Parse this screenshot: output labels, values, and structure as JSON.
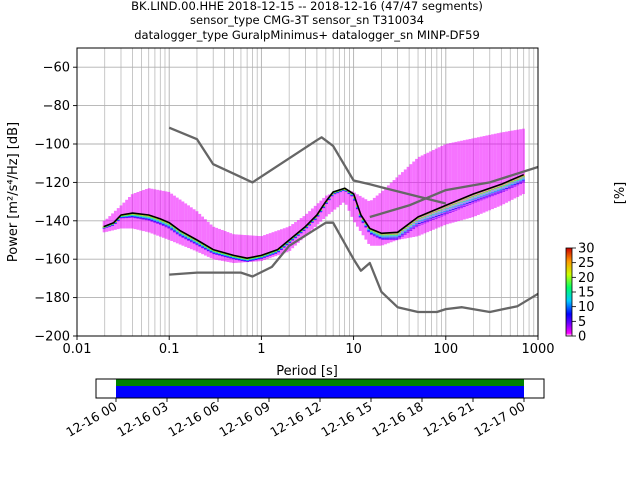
{
  "title_lines": [
    "BK.LIND.00.HHE   2018-12-15 -- 2018-12-16  (47/47 segments)",
    "sensor_type CMG-3T sensor_sn T310034",
    "datalogger_type GuralpMinimus+ datalogger_sn MINP-DF59"
  ],
  "colorbar": {
    "label": "[%]",
    "ticks": [
      "0",
      "5",
      "10",
      "15",
      "20",
      "25",
      "30"
    ],
    "range": [
      0,
      30
    ]
  },
  "timeline": {
    "ticks": [
      "12-16 00",
      "12-16 03",
      "12-16 06",
      "12-16 09",
      "12-16 12",
      "12-16 15",
      "12-16 18",
      "12-16 21",
      "12-17 00"
    ],
    "bar_colors": [
      "#008000",
      "#0000ff"
    ]
  },
  "chart_data": {
    "type": "line",
    "xlabel": "Period [s]",
    "ylabel": "Power [m²/s⁴/Hz] [dB]",
    "xscale": "log",
    "xlim": [
      0.01,
      1000
    ],
    "ylim": [
      -200,
      -50
    ],
    "x_ticks": [
      "0.01",
      "0.1",
      "1",
      "10",
      "100",
      "1000"
    ],
    "y_ticks": [
      "−200",
      "−180",
      "−160",
      "−140",
      "−120",
      "−100",
      "−80",
      "−60"
    ],
    "grid": true,
    "series": [
      {
        "color": "#666666",
        "x": [
          0.1,
          0.2,
          0.3,
          0.8,
          4,
          4.5,
          6,
          10,
          15,
          100
        ],
        "y": [
          -91.5,
          -97.5,
          -110.5,
          -120,
          -98,
          -96.5,
          -101,
          -119,
          -121,
          -131
        ]
      },
      {
        "color": "#666666",
        "x": [
          15,
          40,
          100,
          300,
          1000
        ],
        "y": [
          -138,
          -132,
          -124,
          -120,
          -112
        ]
      },
      {
        "color": "#666666",
        "x": [
          0.1,
          0.2,
          0.6,
          0.8,
          1.3,
          2,
          5,
          6,
          10,
          12,
          15,
          20,
          30,
          50,
          80,
          100,
          150,
          300,
          600,
          1000
        ],
        "y": [
          -168,
          -167,
          -167,
          -169,
          -164,
          -153,
          -141,
          -141,
          -160,
          -166,
          -162,
          -177,
          -185,
          -187.5,
          -187.5,
          -186,
          -185,
          -187.5,
          -184.5,
          -178
        ]
      },
      {
        "color": "#000000",
        "x": [
          0.0195,
          0.025,
          0.03,
          0.04,
          0.06,
          0.08,
          0.1,
          0.13,
          0.2,
          0.3,
          0.5,
          0.7,
          1,
          1.5,
          2,
          3,
          4,
          5,
          6,
          8,
          10,
          12,
          15,
          20,
          30,
          50,
          100,
          200,
          400,
          700
        ],
        "y": [
          -143,
          -141,
          -137,
          -136,
          -137,
          -139,
          -141,
          -145,
          -150,
          -155,
          -158,
          -159.5,
          -158,
          -155,
          -150,
          -143,
          -137,
          -130,
          -125,
          -123,
          -126,
          -137,
          -144,
          -146.5,
          -146,
          -138,
          -132,
          -126,
          -121,
          -116
        ]
      }
    ],
    "density": {
      "colormap": "pqlx",
      "upper_envelope": {
        "x": [
          0.02,
          0.03,
          0.04,
          0.06,
          0.1,
          0.2,
          0.3,
          0.5,
          1,
          2,
          3,
          5,
          8,
          10,
          15,
          20,
          30,
          50,
          100,
          200,
          400,
          700
        ],
        "y": [
          -140,
          -132,
          -126,
          -123,
          -125,
          -135,
          -143,
          -147,
          -148,
          -143,
          -137,
          -127,
          -123,
          -125,
          -130,
          -125,
          -117,
          -107,
          -100,
          -97,
          -94,
          -92
        ]
      },
      "lower_envelope": {
        "x": [
          0.02,
          0.03,
          0.04,
          0.06,
          0.1,
          0.2,
          0.3,
          0.5,
          1,
          2,
          3,
          5,
          8,
          10,
          15,
          20,
          30,
          50,
          100,
          200,
          400,
          700
        ],
        "y": [
          -146,
          -144,
          -144,
          -146,
          -150,
          -156,
          -160,
          -162,
          -161,
          -156,
          -148,
          -138,
          -130,
          -140,
          -153,
          -153,
          -150,
          -148,
          -142,
          -138,
          -132,
          -126
        ]
      }
    }
  }
}
